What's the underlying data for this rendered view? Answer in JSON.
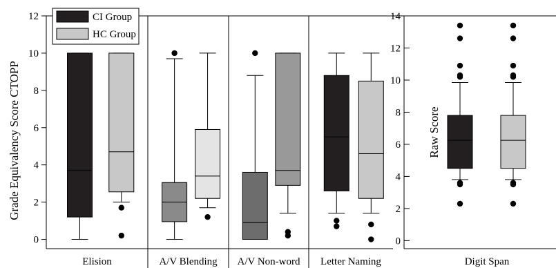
{
  "chart_data": [
    {
      "type": "boxplot",
      "ylabel": "Grade Equivalency Score CTOPP",
      "ylim": [
        -0.5,
        12
      ],
      "yticks": [
        0,
        2,
        4,
        6,
        8,
        10,
        12
      ],
      "legend": {
        "placement": "top-left",
        "entries": [
          {
            "name": "CI Group",
            "color": "#231f20"
          },
          {
            "name": "HC Group",
            "color": "#c8c8c8"
          }
        ]
      },
      "categories": [
        "Elision",
        "A/V Blending",
        "A/V Non-word",
        "Letter Naming"
      ],
      "groups": [
        {
          "category": "Elision",
          "boxes": [
            {
              "group": "CI Group",
              "color": "#231f20",
              "whisker_low": 0,
              "q1": 1.2,
              "median": 3.7,
              "q3": 10,
              "whisker_high": 10,
              "outliers": []
            },
            {
              "group": "HC Group",
              "color": "#c8c8c8",
              "whisker_low": 2.0,
              "q1": 2.55,
              "median": 4.7,
              "q3": 10,
              "whisker_high": 10,
              "outliers": [
                1.7,
                0.2
              ]
            }
          ]
        },
        {
          "category": "A/V Blending",
          "boxes": [
            {
              "group": "CI Group",
              "color": "#8a8a8a",
              "whisker_low": 0,
              "q1": 0.95,
              "median": 2.0,
              "q3": 3.05,
              "whisker_high": 9.7,
              "outliers": [
                10
              ]
            },
            {
              "group": "HC Group",
              "color": "#e4e4e4",
              "whisker_low": 1.7,
              "q1": 2.2,
              "median": 3.4,
              "q3": 5.9,
              "whisker_high": 10,
              "outliers": [
                1.2
              ]
            }
          ]
        },
        {
          "category": "A/V Non-word",
          "boxes": [
            {
              "group": "CI Group",
              "color": "#6d6d6d",
              "whisker_low": 0,
              "q1": 0,
              "median": 0.9,
              "q3": 3.6,
              "whisker_high": 8.8,
              "outliers": [
                10
              ]
            },
            {
              "group": "HC Group",
              "color": "#999999",
              "whisker_low": 1.4,
              "q1": 2.9,
              "median": 3.7,
              "q3": 10,
              "whisker_high": 10,
              "outliers": [
                0.4,
                0.2
              ]
            }
          ]
        },
        {
          "category": "Letter Naming",
          "boxes": [
            {
              "group": "CI Group",
              "color": "#231f20",
              "whisker_low": 1.4,
              "q1": 2.6,
              "median": 5.5,
              "q3": 8.8,
              "whisker_high": 10,
              "outliers": [
                1.0,
                0.7
              ]
            },
            {
              "group": "HC Group",
              "color": "#c8c8c8",
              "whisker_low": 1.4,
              "q1": 2.2,
              "median": 4.6,
              "q3": 8.5,
              "whisker_high": 10,
              "outliers": [
                0.8,
                0.0
              ]
            }
          ]
        }
      ]
    },
    {
      "type": "boxplot",
      "ylabel": "Raw Score",
      "ylim": [
        -0.5,
        14
      ],
      "yticks": [
        0,
        2,
        4,
        6,
        8,
        10,
        12,
        14
      ],
      "categories": [
        "Digit Span"
      ],
      "groups": [
        {
          "category": "Digit Span",
          "boxes": [
            {
              "group": "CI Group",
              "color": "#231f20",
              "whisker_low": 3.8,
              "q1": 4.5,
              "median": 6.25,
              "q3": 7.8,
              "whisker_high": 9.85,
              "outliers": [
                13.4,
                12.6,
                10.9,
                10.3,
                10.2,
                3.6,
                3.5,
                2.3
              ]
            },
            {
              "group": "HC Group",
              "color": "#c8c8c8",
              "whisker_low": 3.8,
              "q1": 4.5,
              "median": 6.25,
              "q3": 7.8,
              "whisker_high": 9.85,
              "outliers": [
                13.4,
                12.6,
                10.9,
                10.3,
                10.2,
                3.6,
                3.5,
                2.3
              ]
            }
          ]
        }
      ]
    }
  ]
}
